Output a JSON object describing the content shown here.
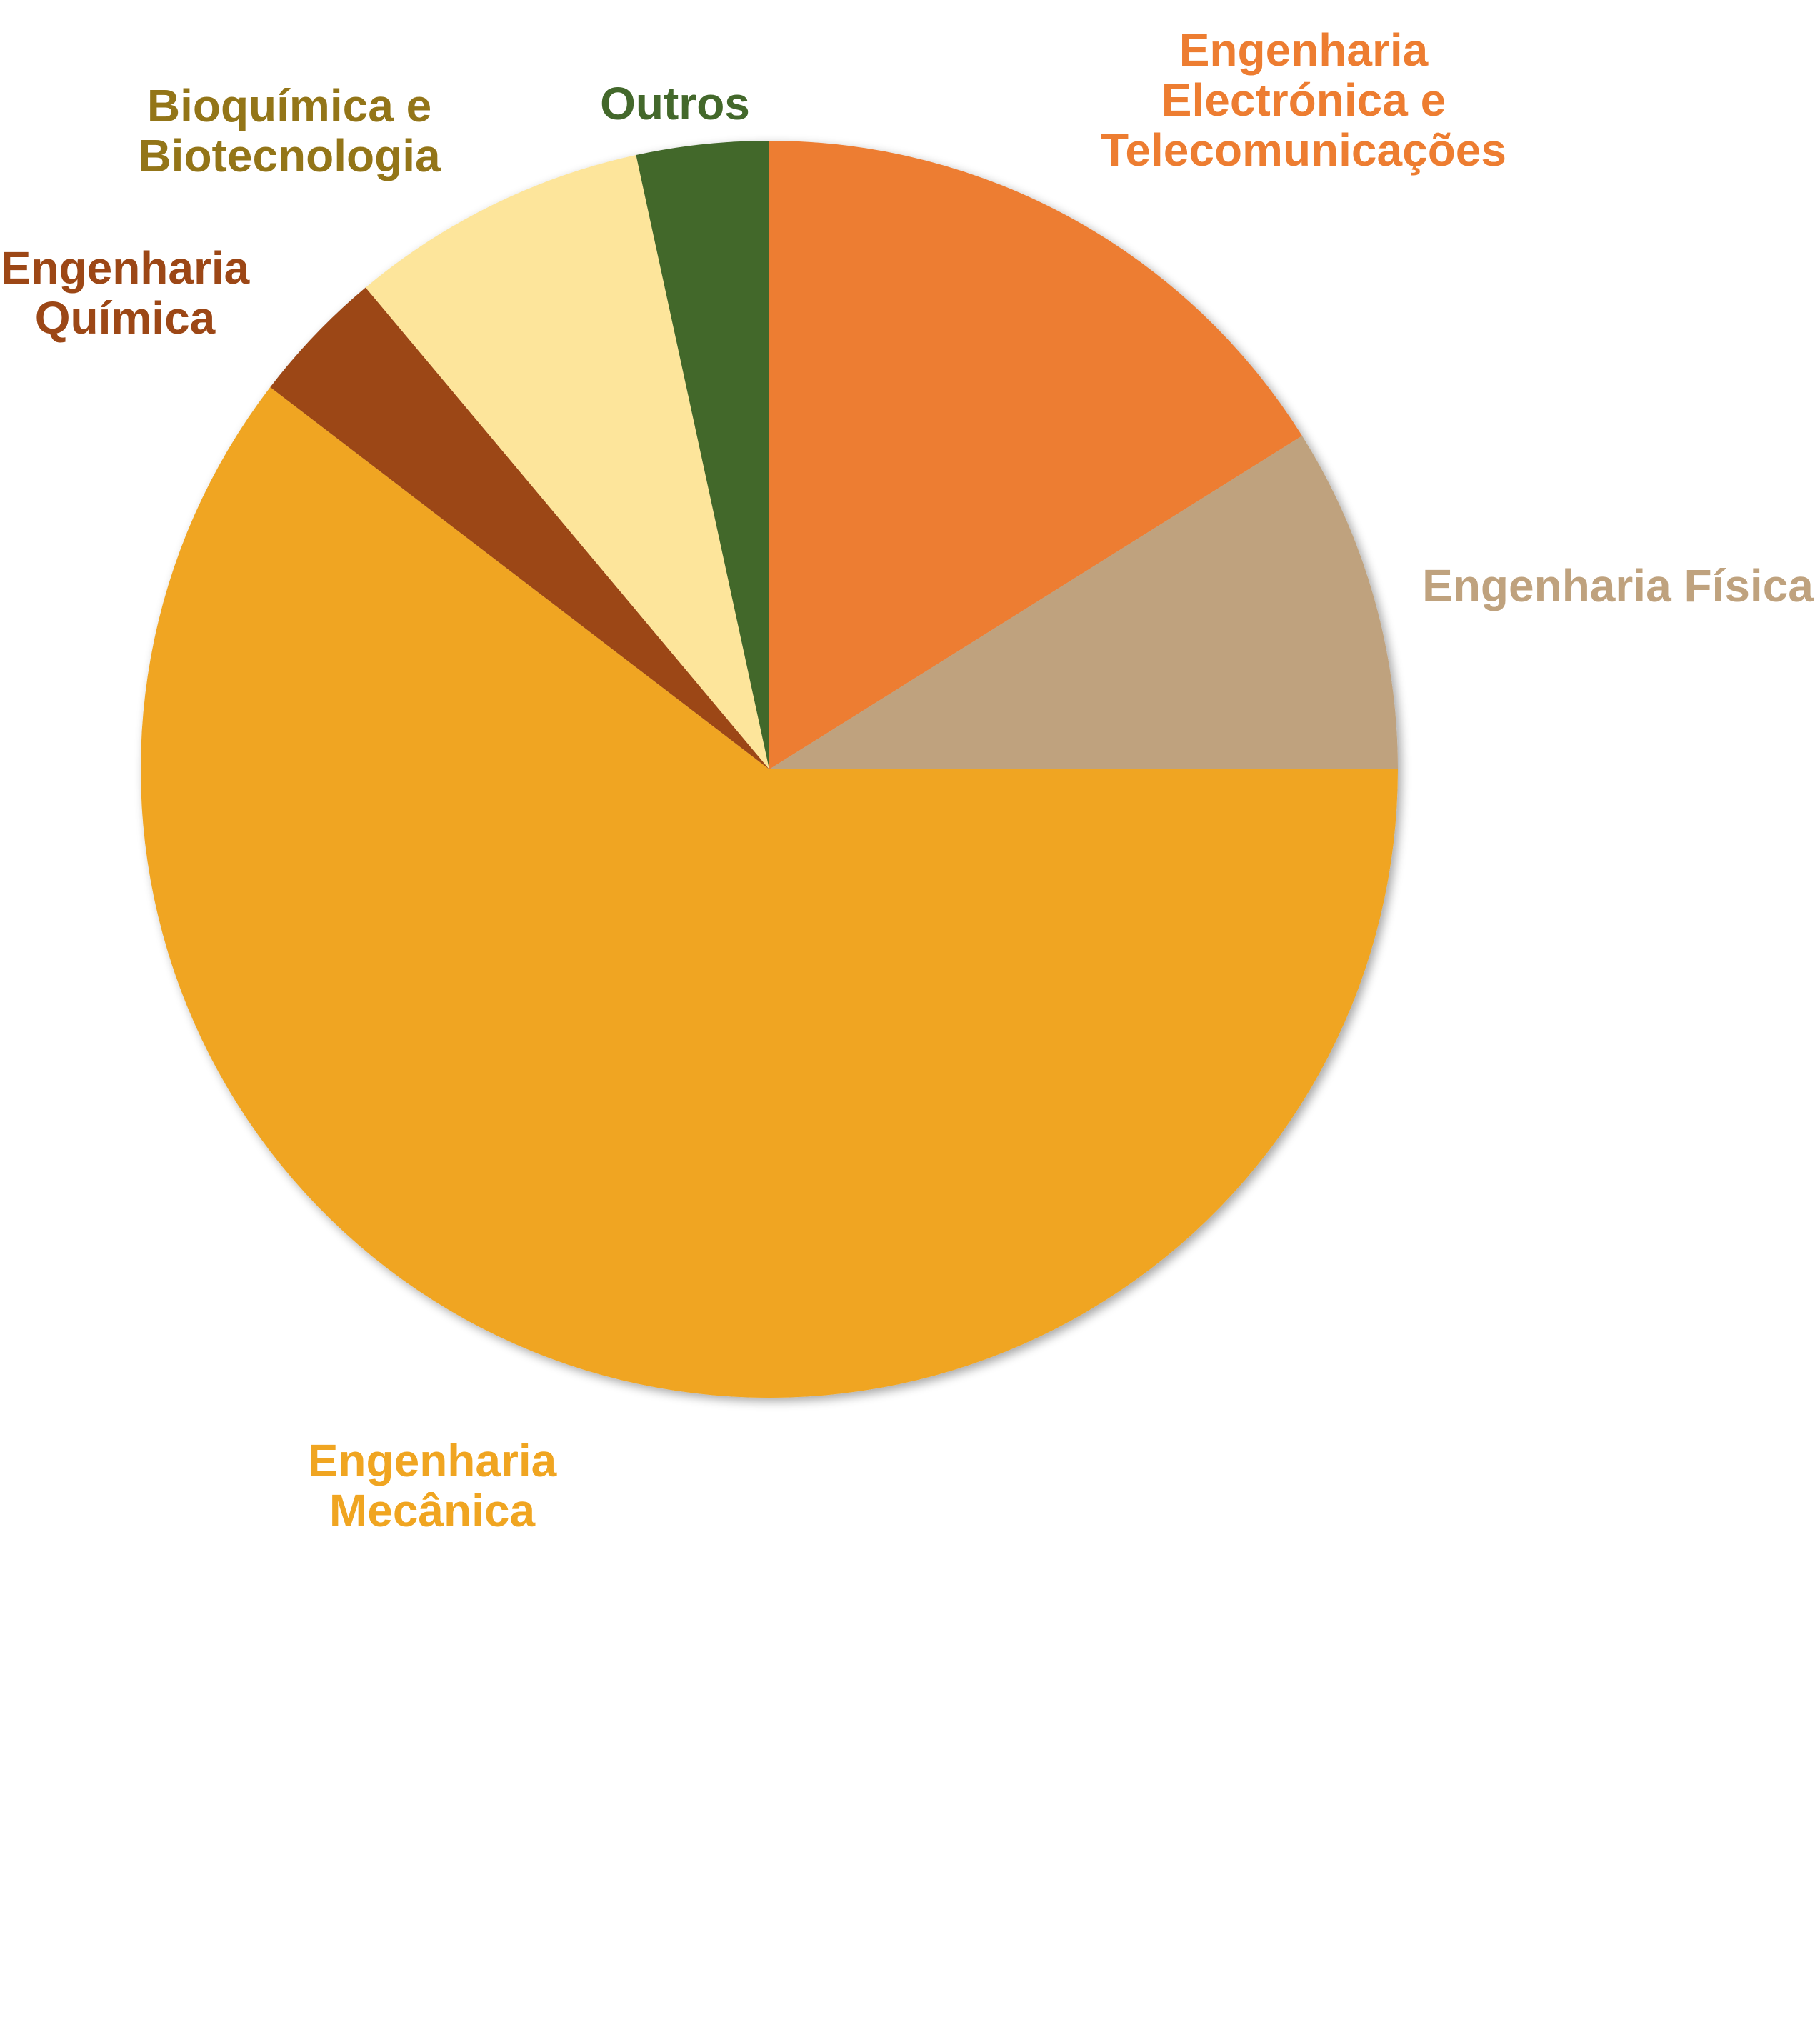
{
  "chart_data": {
    "type": "pie",
    "start_angle_deg": 0,
    "direction": "clockwise",
    "slices": [
      {
        "label": [
          "Engenharia",
          "Electrónica e",
          "Telecomunicações"
        ],
        "value": 16.1,
        "color": "#ED7D31"
      },
      {
        "label": [
          "Engenharia Física"
        ],
        "value": 8.9,
        "color": "#BFA27E"
      },
      {
        "label": [
          "Engenharia",
          "Mecânica"
        ],
        "value": 60.4,
        "color": "#F0A521"
      },
      {
        "label": [
          "Engenharia",
          "Química"
        ],
        "value": 3.5,
        "color": "#9C4716"
      },
      {
        "label": [
          "Bioquímica e",
          "Biotecnologia"
        ],
        "value": 7.7,
        "color": "#FDE59B"
      },
      {
        "label": [
          "Outros"
        ],
        "value": 3.4,
        "color": "#43682B"
      }
    ],
    "label_colors": [
      "#ED7D31",
      "#BFA27E",
      "#F0A521",
      "#9C4716",
      "#937518",
      "#43682B"
    ]
  }
}
